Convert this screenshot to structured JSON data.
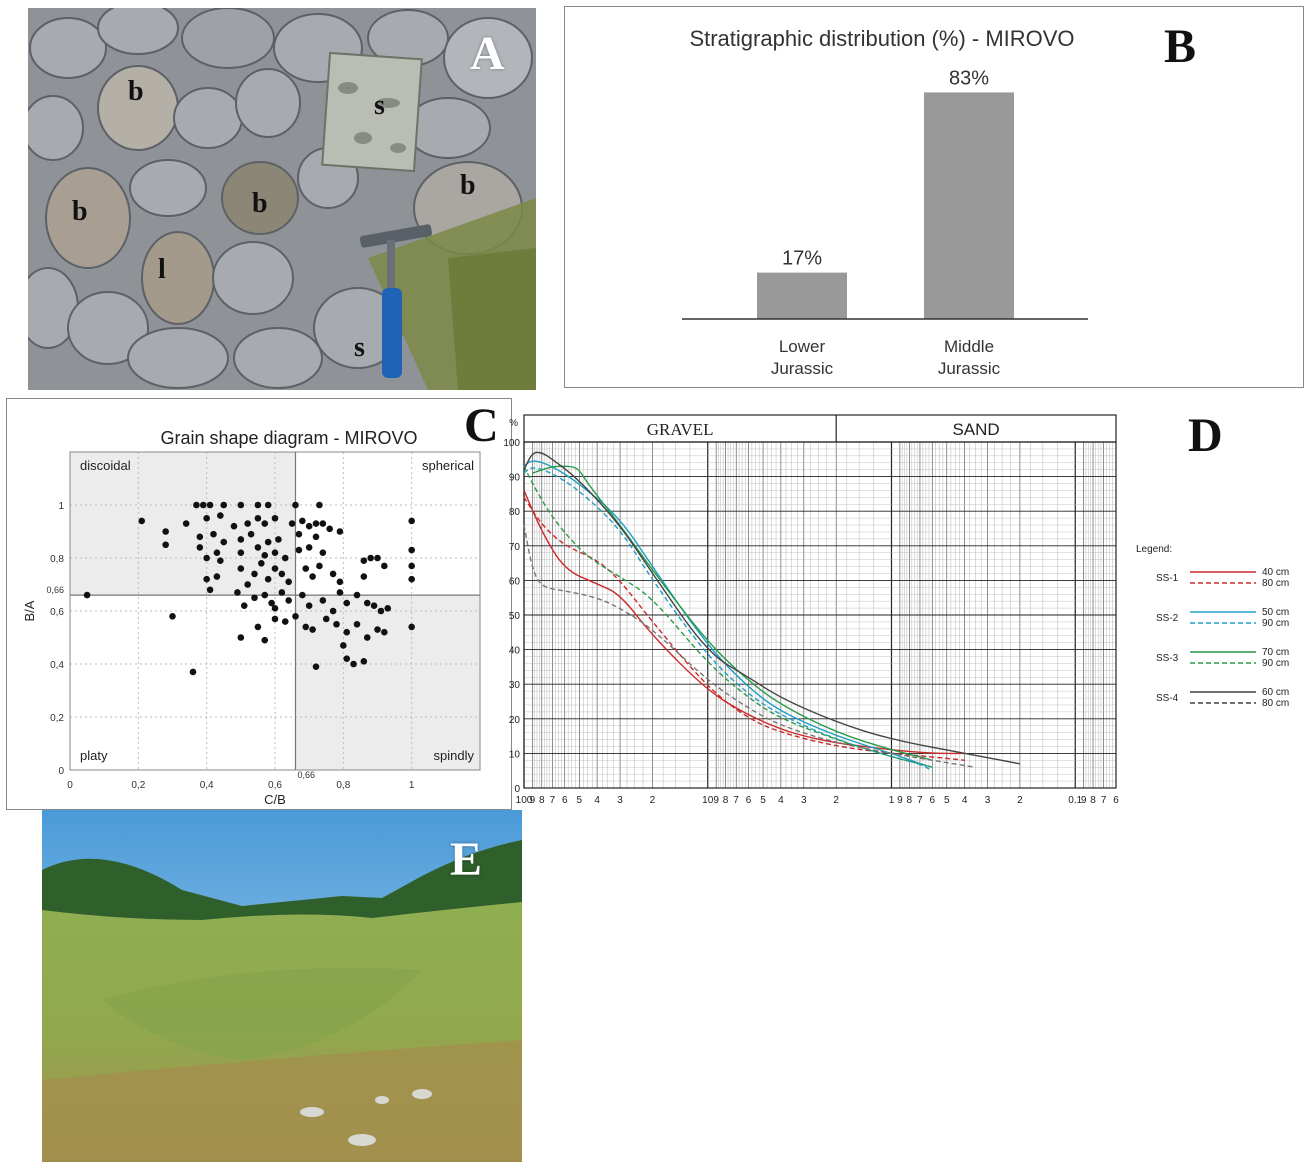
{
  "panels": {
    "A": {
      "label": "A",
      "tags": [
        "b",
        "s",
        "b",
        "b",
        "b",
        "l",
        "s"
      ]
    },
    "B": {
      "label": "B"
    },
    "C": {
      "label": "C"
    },
    "D": {
      "label": "D"
    },
    "E": {
      "label": "E"
    }
  },
  "chart_data": [
    {
      "id": "B",
      "type": "bar",
      "title": "Stratigraphic distribution (%) - MIROVO",
      "categories": [
        "Lower Jurassic",
        "Middle Jurassic"
      ],
      "category_lines": [
        [
          "Lower",
          "Jurassic"
        ],
        [
          "Middle",
          "Jurassic"
        ]
      ],
      "values": [
        17,
        83
      ],
      "value_labels": [
        "17%",
        "83%"
      ],
      "ylim": [
        0,
        100
      ],
      "color": "#999999",
      "grid": false
    },
    {
      "id": "C",
      "type": "scatter",
      "title": "Grain shape diagram - MIROVO",
      "xlabel": "C/B",
      "ylabel": "B/A",
      "xlim": [
        0,
        1.2
      ],
      "ylim": [
        0,
        1.2
      ],
      "xticks": [
        "0",
        "0,2",
        "0,4",
        "0,6",
        "0,8",
        "1"
      ],
      "yticks": [
        "0",
        "0,2",
        "0,4",
        "0,6",
        "0,8",
        "1"
      ],
      "threshold_label": "0,66",
      "threshold": 0.66,
      "quadrants": {
        "top_left": "discoidal",
        "top_right": "spherical",
        "bottom_left": "platy",
        "bottom_right": "spindly"
      },
      "shaded_color": "#ececec",
      "grid": "dotted",
      "points": [
        [
          0.05,
          0.66
        ],
        [
          0.21,
          0.94
        ],
        [
          0.28,
          0.9
        ],
        [
          0.28,
          0.85
        ],
        [
          0.3,
          0.58
        ],
        [
          0.36,
          0.37
        ],
        [
          0.37,
          1.0
        ],
        [
          0.39,
          1.0
        ],
        [
          0.41,
          1.0
        ],
        [
          0.45,
          1.0
        ],
        [
          0.5,
          1.0
        ],
        [
          0.55,
          1.0
        ],
        [
          0.58,
          1.0
        ],
        [
          0.66,
          1.0
        ],
        [
          0.73,
          1.0
        ],
        [
          0.4,
          0.95
        ],
        [
          0.44,
          0.96
        ],
        [
          0.48,
          0.92
        ],
        [
          0.52,
          0.93
        ],
        [
          0.55,
          0.95
        ],
        [
          0.57,
          0.93
        ],
        [
          0.6,
          0.95
        ],
        [
          0.65,
          0.93
        ],
        [
          0.68,
          0.94
        ],
        [
          0.7,
          0.92
        ],
        [
          0.72,
          0.93
        ],
        [
          0.74,
          0.93
        ],
        [
          0.76,
          0.91
        ],
        [
          0.79,
          0.9
        ],
        [
          0.38,
          0.88
        ],
        [
          0.42,
          0.89
        ],
        [
          0.45,
          0.86
        ],
        [
          0.5,
          0.87
        ],
        [
          0.53,
          0.89
        ],
        [
          0.58,
          0.86
        ],
        [
          0.61,
          0.87
        ],
        [
          0.67,
          0.89
        ],
        [
          0.72,
          0.88
        ],
        [
          0.38,
          0.84
        ],
        [
          0.4,
          0.8
        ],
        [
          0.43,
          0.82
        ],
        [
          0.44,
          0.79
        ],
        [
          0.5,
          0.82
        ],
        [
          0.55,
          0.84
        ],
        [
          0.57,
          0.81
        ],
        [
          0.6,
          0.82
        ],
        [
          0.63,
          0.8
        ],
        [
          0.67,
          0.83
        ],
        [
          0.7,
          0.84
        ],
        [
          0.74,
          0.82
        ],
        [
          0.4,
          0.72
        ],
        [
          0.41,
          0.68
        ],
        [
          0.43,
          0.73
        ],
        [
          0.5,
          0.76
        ],
        [
          0.52,
          0.7
        ],
        [
          0.54,
          0.74
        ],
        [
          0.56,
          0.78
        ],
        [
          0.58,
          0.72
        ],
        [
          0.6,
          0.76
        ],
        [
          0.62,
          0.74
        ],
        [
          0.64,
          0.71
        ],
        [
          0.69,
          0.76
        ],
        [
          0.71,
          0.73
        ],
        [
          0.73,
          0.77
        ],
        [
          0.77,
          0.74
        ],
        [
          0.79,
          0.71
        ],
        [
          0.86,
          0.79
        ],
        [
          0.88,
          0.8
        ],
        [
          0.9,
          0.8
        ],
        [
          0.92,
          0.77
        ],
        [
          0.86,
          0.73
        ],
        [
          0.49,
          0.67
        ],
        [
          0.51,
          0.62
        ],
        [
          0.54,
          0.65
        ],
        [
          0.57,
          0.66
        ],
        [
          0.59,
          0.63
        ],
        [
          0.6,
          0.61
        ],
        [
          0.62,
          0.67
        ],
        [
          0.64,
          0.64
        ],
        [
          0.68,
          0.66
        ],
        [
          0.7,
          0.62
        ],
        [
          0.74,
          0.64
        ],
        [
          0.77,
          0.6
        ],
        [
          0.79,
          0.67
        ],
        [
          0.81,
          0.63
        ],
        [
          0.84,
          0.66
        ],
        [
          0.87,
          0.63
        ],
        [
          0.89,
          0.62
        ],
        [
          0.91,
          0.6
        ],
        [
          0.93,
          0.61
        ],
        [
          0.5,
          0.5
        ],
        [
          0.55,
          0.54
        ],
        [
          0.57,
          0.49
        ],
        [
          0.6,
          0.57
        ],
        [
          0.63,
          0.56
        ],
        [
          0.66,
          0.58
        ],
        [
          0.69,
          0.54
        ],
        [
          0.71,
          0.53
        ],
        [
          0.75,
          0.57
        ],
        [
          0.78,
          0.55
        ],
        [
          0.81,
          0.52
        ],
        [
          0.84,
          0.55
        ],
        [
          0.87,
          0.5
        ],
        [
          0.9,
          0.53
        ],
        [
          0.92,
          0.52
        ],
        [
          1.0,
          0.54
        ],
        [
          0.72,
          0.39
        ],
        [
          0.81,
          0.42
        ],
        [
          0.83,
          0.4
        ],
        [
          0.86,
          0.41
        ],
        [
          0.8,
          0.47
        ],
        [
          1.0,
          0.94
        ],
        [
          1.0,
          0.83
        ],
        [
          1.0,
          0.77
        ],
        [
          1.0,
          0.72
        ],
        [
          0.34,
          0.93
        ]
      ]
    },
    {
      "id": "D",
      "type": "line",
      "xscale": "log",
      "xlabel": "",
      "ylabel": "%",
      "ylim": [
        0,
        100
      ],
      "yticks": [
        "0",
        "10",
        "20",
        "30",
        "40",
        "50",
        "60",
        "70",
        "80",
        "90",
        "100"
      ],
      "top_bands": [
        "GRAVEL",
        "SAND"
      ],
      "bottom_tick_text": [
        "100",
        "9",
        "8",
        "7",
        "6",
        "5",
        "4",
        "3",
        "2",
        "10",
        "9",
        "8",
        "7",
        "6",
        "5",
        "4",
        "3",
        "2",
        "1",
        "9",
        "8",
        "7",
        "6",
        "5",
        "4",
        "3",
        "2",
        "0.1",
        "9",
        "8",
        "7",
        "6"
      ],
      "legend_title": "Legend:",
      "legend_groups": [
        {
          "name": "SS-1",
          "color": "#cc2a2a",
          "entries": [
            "40 cm",
            "80 cm"
          ]
        },
        {
          "name": "SS-2",
          "color": "#1d9fc4",
          "entries": [
            "50 cm",
            "90 cm"
          ]
        },
        {
          "name": "SS-3",
          "color": "#2a9a4a",
          "entries": [
            "70 cm",
            "90 cm"
          ]
        },
        {
          "name": "SS-4",
          "color": "#444444",
          "entries": [
            "60 cm",
            "80 cm"
          ]
        }
      ],
      "series": [
        {
          "name": "SS-1 40 cm",
          "color": "#cc2a2a",
          "dash": false,
          "points": [
            [
              100,
              86
            ],
            [
              80,
              74
            ],
            [
              60,
              63
            ],
            [
              40,
              59
            ],
            [
              30,
              56
            ],
            [
              20,
              44
            ],
            [
              10,
              28
            ],
            [
              6,
              21
            ],
            [
              4,
              17
            ],
            [
              3,
              15
            ],
            [
              2,
              13
            ],
            [
              1,
              11
            ],
            [
              0.6,
              10
            ],
            [
              0.4,
              10
            ]
          ]
        },
        {
          "name": "SS-1 80 cm",
          "color": "#cc2a2a",
          "dash": true,
          "points": [
            [
              100,
              84
            ],
            [
              80,
              76
            ],
            [
              60,
              70
            ],
            [
              40,
              66
            ],
            [
              30,
              60
            ],
            [
              20,
              48
            ],
            [
              10,
              29
            ],
            [
              6,
              20
            ],
            [
              4,
              16
            ],
            [
              2,
              12
            ],
            [
              1,
              10
            ],
            [
              0.6,
              9
            ],
            [
              0.4,
              8
            ]
          ]
        },
        {
          "name": "SS-2 50 cm",
          "color": "#1d9fc4",
          "dash": false,
          "points": [
            [
              100,
              93
            ],
            [
              90,
              95
            ],
            [
              70,
              93
            ],
            [
              50,
              88
            ],
            [
              30,
              78
            ],
            [
              20,
              64
            ],
            [
              10,
              41
            ],
            [
              6,
              29
            ],
            [
              4,
              22
            ],
            [
              2,
              15
            ],
            [
              1,
              10
            ],
            [
              0.7,
              7
            ],
            [
              0.6,
              6
            ]
          ]
        },
        {
          "name": "SS-2 90 cm",
          "color": "#1d9fc4",
          "dash": true,
          "points": [
            [
              100,
              91
            ],
            [
              90,
              93
            ],
            [
              70,
              91
            ],
            [
              50,
              86
            ],
            [
              30,
              75
            ],
            [
              20,
              60
            ],
            [
              10,
              38
            ],
            [
              6,
              27
            ],
            [
              4,
              21
            ],
            [
              2,
              14
            ],
            [
              1,
              9
            ],
            [
              0.7,
              7
            ],
            [
              0.6,
              5
            ]
          ]
        },
        {
          "name": "SS-3 70 cm",
          "color": "#2a9a4a",
          "dash": false,
          "points": [
            [
              90,
              91
            ],
            [
              70,
              93
            ],
            [
              55,
              93
            ],
            [
              50,
              92
            ],
            [
              45,
              88
            ],
            [
              30,
              76
            ],
            [
              20,
              63
            ],
            [
              10,
              42
            ],
            [
              6,
              31
            ],
            [
              4,
              24
            ],
            [
              2,
              16
            ],
            [
              1,
              11
            ],
            [
              0.7,
              9
            ],
            [
              0.6,
              8
            ]
          ]
        },
        {
          "name": "SS-3 90 cm",
          "color": "#2a9a4a",
          "dash": true,
          "points": [
            [
              100,
              93
            ],
            [
              90,
              88
            ],
            [
              70,
              78
            ],
            [
              50,
              69
            ],
            [
              40,
              65
            ],
            [
              30,
              61
            ],
            [
              20,
              55
            ],
            [
              10,
              36
            ],
            [
              6,
              26
            ],
            [
              4,
              20
            ],
            [
              2,
              14
            ],
            [
              1,
              9
            ],
            [
              0.7,
              7
            ],
            [
              0.6,
              6
            ]
          ]
        },
        {
          "name": "SS-4 60 cm",
          "color": "#444444",
          "dash": false,
          "points": [
            [
              100,
              92
            ],
            [
              90,
              97
            ],
            [
              80,
              97
            ],
            [
              70,
              95
            ],
            [
              50,
              89
            ],
            [
              30,
              76
            ],
            [
              20,
              62
            ],
            [
              10,
              39
            ],
            [
              6,
              32
            ],
            [
              4,
              26
            ],
            [
              2,
              19
            ],
            [
              1,
              14
            ],
            [
              0.4,
              10
            ],
            [
              0.2,
              7
            ]
          ]
        },
        {
          "name": "SS-4 80 cm",
          "color": "#777777",
          "dash": true,
          "points": [
            [
              100,
              76
            ],
            [
              90,
              63
            ],
            [
              80,
              58
            ],
            [
              60,
              57
            ],
            [
              40,
              55
            ],
            [
              30,
              52
            ],
            [
              20,
              46
            ],
            [
              10,
              31
            ],
            [
              6,
              23
            ],
            [
              4,
              18
            ],
            [
              2,
              13
            ],
            [
              1,
              10
            ],
            [
              0.6,
              8
            ],
            [
              0.35,
              6
            ]
          ]
        }
      ]
    }
  ]
}
